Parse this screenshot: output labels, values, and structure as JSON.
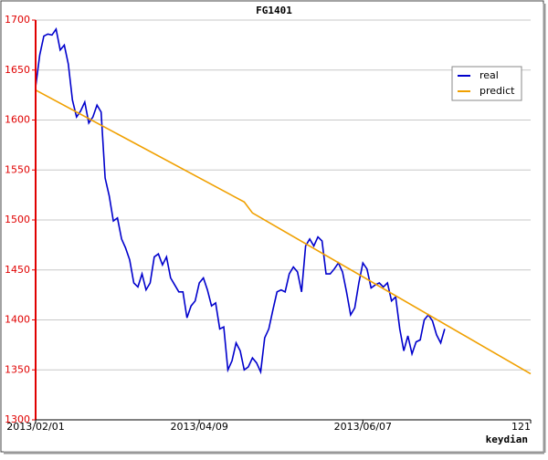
{
  "chart_data": {
    "type": "line",
    "title": "FG1401",
    "x_label": "keydian",
    "xlim": [
      0,
      121
    ],
    "xticks": [
      {
        "value": 0,
        "label": "2013/02/01"
      },
      {
        "value": 40,
        "label": "2013/04/09"
      },
      {
        "value": 80,
        "label": "2013/06/07"
      },
      121
    ],
    "ylim": [
      1300,
      1700
    ],
    "yticks": [
      1300,
      1350,
      1400,
      1450,
      1500,
      1550,
      1600,
      1650,
      1700
    ],
    "grid": true,
    "legend": "upper right",
    "series": [
      {
        "name": "real",
        "color": "#0000cc",
        "x": [
          0,
          1,
          2,
          3,
          4,
          5,
          6,
          7,
          8,
          9,
          10,
          11,
          12,
          13,
          14,
          15,
          16,
          17,
          18,
          19,
          20,
          21,
          22,
          23,
          24,
          25,
          26,
          27,
          28,
          29,
          30,
          31,
          32,
          33,
          34,
          35,
          36,
          37,
          38,
          39,
          40,
          41,
          42,
          43,
          44,
          45,
          46,
          47,
          48,
          49,
          50,
          51,
          52,
          53,
          54,
          55,
          56,
          57,
          58,
          59,
          60,
          61,
          62,
          63,
          64,
          65,
          66,
          67,
          68,
          69,
          70,
          71,
          72,
          73,
          74,
          75,
          76,
          77,
          78,
          79,
          80,
          81,
          82,
          83,
          84,
          85,
          86,
          87,
          88,
          89,
          90,
          91,
          92,
          93,
          94,
          95,
          96,
          97,
          98,
          99,
          100
        ],
        "values": [
          1633,
          1665,
          1684,
          1686,
          1685,
          1691,
          1670,
          1675,
          1656,
          1620,
          1603,
          1609,
          1618,
          1597,
          1603,
          1615,
          1608,
          1542,
          1524,
          1499,
          1502,
          1481,
          1472,
          1460,
          1437,
          1433,
          1446,
          1430,
          1437,
          1463,
          1466,
          1455,
          1463,
          1442,
          1435,
          1428,
          1428,
          1402,
          1414,
          1419,
          1437,
          1442,
          1430,
          1414,
          1417,
          1391,
          1393,
          1350,
          1359,
          1377,
          1369,
          1350,
          1353,
          1362,
          1357,
          1348,
          1382,
          1391,
          1410,
          1428,
          1430,
          1428,
          1446,
          1453,
          1448,
          1428,
          1474,
          1481,
          1474,
          1483,
          1479,
          1446,
          1446,
          1451,
          1457,
          1448,
          1428,
          1405,
          1412,
          1437,
          1457,
          1451,
          1432,
          1435,
          1437,
          1433,
          1437,
          1419,
          1423,
          1391,
          1369,
          1384,
          1366,
          1378,
          1380,
          1400,
          1405,
          1399,
          1385,
          1377,
          1391
        ]
      },
      {
        "name": "predict",
        "color": "#f0a000",
        "x": [
          0,
          51,
          53,
          121
        ],
        "values": [
          1630,
          1518,
          1507,
          1346
        ]
      }
    ]
  }
}
